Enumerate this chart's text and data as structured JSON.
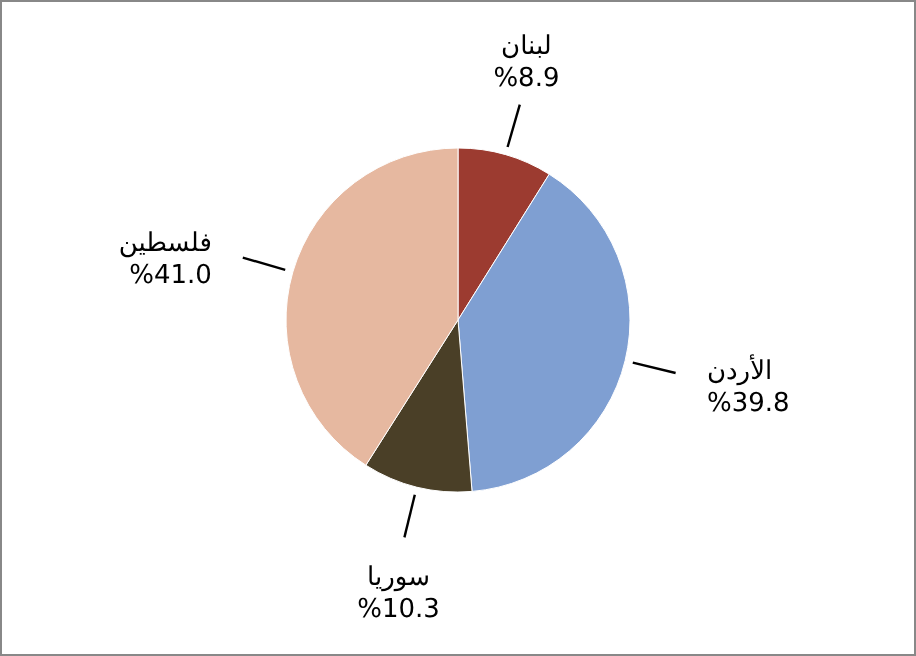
{
  "chart_data": {
    "type": "pie",
    "categories": [
      "لبنان",
      "الأردن",
      "سوريا",
      "فلسطين"
    ],
    "values": [
      8.9,
      39.8,
      10.3,
      41.0
    ],
    "colors": [
      "#9c3b30",
      "#7f9fd2",
      "#4a3f27",
      "#e6b8a0"
    ],
    "value_labels": [
      "%8.9",
      "%39.8",
      "%10.3",
      "%41.0"
    ]
  }
}
